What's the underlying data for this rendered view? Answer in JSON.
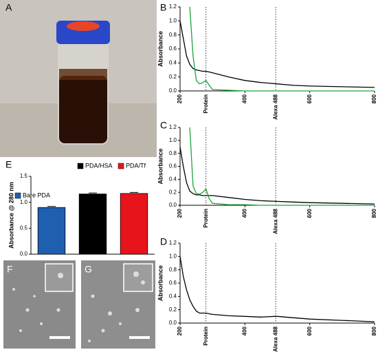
{
  "images": [
    {
      "label": "A"
    },
    {
      "label": "F"
    },
    {
      "label": "G"
    }
  ],
  "chart_data": [
    {
      "type": "line",
      "panel": "B",
      "ylabel": "Absorbance",
      "x": [
        200,
        210,
        220,
        230,
        240,
        250,
        260,
        270,
        280,
        290,
        300,
        350,
        400,
        450,
        500,
        550,
        600,
        700,
        800
      ],
      "series": [
        {
          "color": "#000000",
          "values": [
            1.0,
            0.75,
            0.5,
            0.38,
            0.32,
            0.3,
            0.29,
            0.28,
            0.28,
            0.27,
            0.26,
            0.2,
            0.15,
            0.12,
            0.1,
            0.08,
            0.07,
            0.06,
            0.05
          ]
        },
        {
          "color": "#1aa33a",
          "values": [
            null,
            null,
            null,
            1.2,
            0.5,
            0.15,
            0.1,
            0.12,
            0.15,
            0.08,
            0.02,
            0.01,
            0.0,
            0.0,
            0.0,
            0.0,
            0.0,
            0.0,
            0.0
          ]
        }
      ],
      "xlim": [
        200,
        800
      ],
      "xticks": [
        200,
        400,
        600,
        800
      ],
      "ylim": [
        0,
        1.2
      ],
      "yticks": [
        {
          "value": 0,
          "label": "0.0"
        },
        0.2,
        0.4,
        0.6,
        0.8,
        {
          "value": 1,
          "label": "1.0"
        },
        1.2
      ],
      "annotations": [
        {
          "text": "Protein",
          "x": 280
        },
        {
          "text": "Alexa 488",
          "x": 495
        }
      ]
    },
    {
      "type": "line",
      "panel": "C",
      "ylabel": "Absorbance",
      "x": [
        200,
        210,
        220,
        230,
        240,
        250,
        260,
        270,
        280,
        290,
        300,
        350,
        400,
        450,
        500,
        550,
        600,
        700,
        800
      ],
      "series": [
        {
          "color": "#000000",
          "values": [
            0.9,
            0.6,
            0.35,
            0.22,
            0.18,
            0.16,
            0.16,
            0.15,
            0.15,
            0.15,
            0.15,
            0.12,
            0.09,
            0.07,
            0.06,
            0.05,
            0.04,
            0.03,
            0.02
          ]
        },
        {
          "color": "#1aa33a",
          "values": [
            null,
            null,
            null,
            1.2,
            0.3,
            0.18,
            0.17,
            0.2,
            0.25,
            0.1,
            0.03,
            0.01,
            0.01,
            0.0,
            0.0,
            0.0,
            0.0,
            0.0,
            0.0
          ]
        }
      ],
      "xlim": [
        200,
        800
      ],
      "xticks": [
        200,
        400,
        600,
        800
      ],
      "ylim": [
        0,
        1.2
      ],
      "yticks": [
        {
          "value": 0,
          "label": "0.0"
        },
        0.2,
        0.4,
        0.6,
        0.8,
        {
          "value": 1,
          "label": "1.0"
        },
        1.2
      ],
      "annotations": [
        {
          "text": "Protein",
          "x": 280
        },
        {
          "text": "Alexa 488",
          "x": 495
        }
      ]
    },
    {
      "type": "line",
      "panel": "D",
      "ylabel": "Absorbance",
      "x": [
        200,
        210,
        220,
        230,
        240,
        250,
        260,
        270,
        280,
        290,
        300,
        350,
        400,
        450,
        490,
        500,
        550,
        600,
        700,
        800
      ],
      "series": [
        {
          "color": "#000000",
          "values": [
            1.0,
            0.7,
            0.5,
            0.35,
            0.25,
            0.18,
            0.15,
            0.15,
            0.15,
            0.14,
            0.13,
            0.11,
            0.1,
            0.09,
            0.1,
            0.1,
            0.08,
            0.06,
            0.04,
            0.02
          ]
        }
      ],
      "xlim": [
        200,
        800
      ],
      "xticks": [
        200,
        400,
        600,
        800
      ],
      "ylim": [
        0,
        1.2
      ],
      "yticks": [
        {
          "value": 0,
          "label": "0.0"
        },
        0.2,
        0.4,
        0.6,
        0.8,
        {
          "value": 1,
          "label": "1.0"
        },
        1.2
      ],
      "annotations": [
        {
          "text": "Protein",
          "x": 280
        },
        {
          "text": "Alexa 488",
          "x": 495
        }
      ]
    },
    {
      "type": "bar",
      "panel": "E",
      "ylabel": "Absorbance @ 280 nm",
      "categories": [
        "Bare PDA",
        "PDA/HSA",
        "PDA/Tf"
      ],
      "values": [
        0.9,
        1.16,
        1.17
      ],
      "errors": [
        0.02,
        0.02,
        0.02
      ],
      "colors": [
        "#1f5fb0",
        "#000000",
        "#e8141b"
      ],
      "ylim": [
        0,
        1.5
      ],
      "yticks": [
        {
          "value": 0,
          "label": "0.0"
        },
        0.5,
        {
          "value": 1,
          "label": "1.0"
        },
        1.5
      ]
    }
  ]
}
